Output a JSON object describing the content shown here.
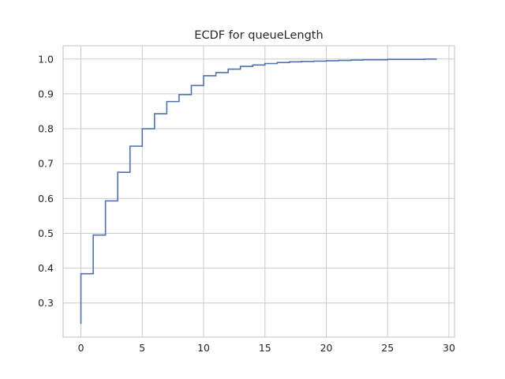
{
  "chart_data": {
    "type": "line",
    "drawstyle": "steps-post",
    "title": "ECDF for queueLength",
    "xlabel": "",
    "ylabel": "",
    "xlim": [
      -1.45,
      30.45
    ],
    "ylim": [
      0.202,
      1.038
    ],
    "xticks": [
      0,
      5,
      10,
      15,
      20,
      25,
      30
    ],
    "yticks": [
      0.3,
      0.4,
      0.5,
      0.6,
      0.7,
      0.8,
      0.9,
      1.0
    ],
    "ytick_labels": [
      "0.3",
      "0.4",
      "0.5",
      "0.6",
      "0.7",
      "0.8",
      "0.9",
      "1.0"
    ],
    "grid": true,
    "legend": "none",
    "series": [
      {
        "color": "#4c72b0",
        "x": [
          0,
          1,
          2,
          3,
          4,
          5,
          6,
          7,
          8,
          9,
          10,
          11,
          12,
          13,
          14,
          15,
          16,
          17,
          18,
          19,
          20,
          21,
          22,
          23,
          24,
          25,
          26,
          27,
          28,
          29
        ],
        "y": [
          0.384,
          0.495,
          0.593,
          0.675,
          0.75,
          0.8,
          0.843,
          0.878,
          0.898,
          0.924,
          0.952,
          0.961,
          0.971,
          0.979,
          0.983,
          0.987,
          0.99,
          0.992,
          0.993,
          0.994,
          0.995,
          0.996,
          0.997,
          0.998,
          0.998,
          0.999,
          0.999,
          0.999,
          1.0,
          1.0
        ],
        "start_y": 0.24
      }
    ]
  }
}
